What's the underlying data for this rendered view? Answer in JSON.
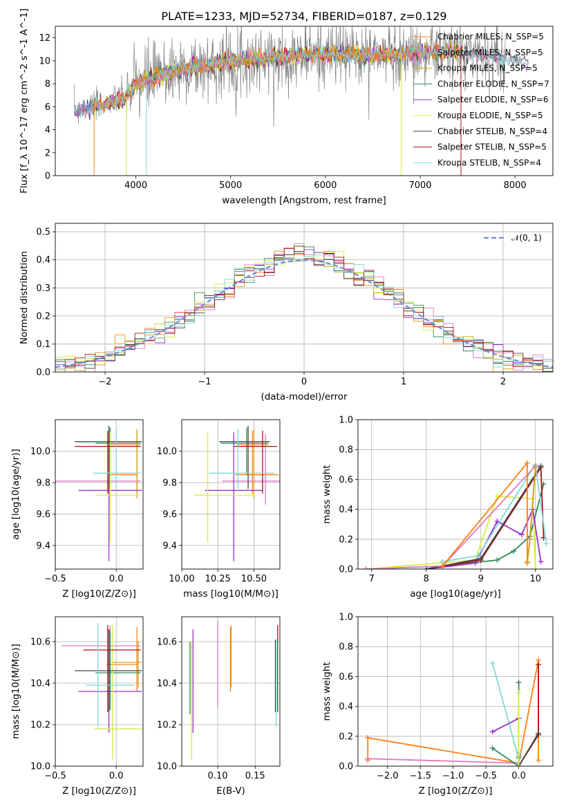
{
  "figure": {
    "title": "PLATE=1233, MJD=52734, FIBERID=0187, z=0.129",
    "colors": {
      "chabrier_miles": "#ff7f0e",
      "salpeter_miles": "#e377c2",
      "kroupa_miles": "#d4a017",
      "chabrier_elodie": "#2e8b57",
      "salpeter_elodie": "#9932cc",
      "kroupa_elodie": "#d4ee3b",
      "chabrier_stelib": "#444444",
      "salpeter_stelib": "#aa1111",
      "kroupa_stelib": "#7fd8d8",
      "data": "#808080",
      "normal": "#6b8fd6"
    }
  },
  "chart_data": [
    {
      "id": "spectrum",
      "type": "line",
      "xlabel": "wavelength [Angstrom, rest frame]",
      "ylabel": "Flux [f_λ 10^-17 erg cm^-2 s^-1 A^-1]",
      "xlim": [
        3150,
        8400
      ],
      "ylim": [
        0,
        13
      ],
      "xticks": [
        "4000",
        "5000",
        "6000",
        "7000",
        "8000"
      ],
      "yticks": [
        "0",
        "2",
        "4",
        "6",
        "8",
        "10",
        "12"
      ],
      "continuum": {
        "x": [
          3350,
          3500,
          3700,
          3900,
          4000,
          4200,
          4400,
          4600,
          4800,
          5000,
          5400,
          5800,
          6200,
          6600,
          7000,
          7400,
          7800,
          8150
        ],
        "y": [
          5.6,
          5.9,
          6.3,
          6.9,
          7.9,
          8.6,
          9.1,
          9.4,
          9.6,
          10.0,
          10.2,
          10.5,
          10.6,
          10.5,
          10.7,
          10.8,
          10.3,
          9.7
        ]
      },
      "legend_position": "upper-right",
      "series": [
        {
          "name": "Chabrier MILES, N_SSP=5",
          "key": "chabrier_miles"
        },
        {
          "name": "Salpeter MILES, N_SSP=5",
          "key": "salpeter_miles"
        },
        {
          "name": "Kroupa MILES, N_SSP=5",
          "key": "kroupa_miles"
        },
        {
          "name": "Chabrier ELODIE, N_SSP=7",
          "key": "chabrier_elodie"
        },
        {
          "name": "Salpeter ELODIE, N_SSP=6",
          "key": "salpeter_elodie"
        },
        {
          "name": "Kroupa ELODIE, N_SSP=5",
          "key": "kroupa_elodie"
        },
        {
          "name": "Chabrier STELIB, N_SSP=4",
          "key": "chabrier_stelib"
        },
        {
          "name": "Salpeter STELIB, N_SSP=5",
          "key": "salpeter_stelib"
        },
        {
          "name": "Kroupa STELIB, N_SSP=4",
          "key": "kroupa_stelib"
        }
      ]
    },
    {
      "id": "residuals",
      "type": "line",
      "xlabel": "(data-model)/error",
      "ylabel": "Normed distribution",
      "xlim": [
        -2.5,
        2.5
      ],
      "ylim": [
        0,
        0.53
      ],
      "xticks": [
        "−2",
        "−1",
        "0",
        "1",
        "2"
      ],
      "yticks": [
        "0.0",
        "0.1",
        "0.2",
        "0.3",
        "0.4",
        "0.5"
      ],
      "normal_legend": "𝒩(0, 1)",
      "bin_width": 0.1,
      "bins_start": -2.5
    },
    {
      "id": "age_Z",
      "type": "scatter",
      "xlabel": "Z [log10(Z/Z⊙)]",
      "ylabel": "age [log10(age/yr)]",
      "xlim": [
        -0.5,
        0.22
      ],
      "ylim": [
        9.25,
        10.2
      ],
      "xticks": [
        "−0.5",
        "0.0"
      ],
      "yticks": [
        "9.4",
        "9.6",
        "9.8",
        "10.0"
      ],
      "points": [
        {
          "key": "chabrier_miles",
          "x": 0.17,
          "xerr": [
            0.23,
            0.0
          ],
          "y": 9.85,
          "yerr": [
            0.12,
            0.28
          ]
        },
        {
          "key": "salpeter_miles",
          "x": -0.05,
          "xerr": [
            0.45,
            0.25
          ],
          "y": 9.81,
          "yerr": [
            0.15,
            0.3
          ]
        },
        {
          "key": "kroupa_miles",
          "x": 0.17,
          "xerr": [
            0.22,
            0.03
          ],
          "y": 10.04,
          "yerr": [
            0.34,
            0.1
          ]
        },
        {
          "key": "chabrier_elodie",
          "x": -0.05,
          "xerr": [
            0.12,
            0.25
          ],
          "y": 10.05,
          "yerr": [
            0.2,
            0.1
          ]
        },
        {
          "key": "salpeter_elodie",
          "x": -0.06,
          "xerr": [
            0.25,
            0.27
          ],
          "y": 9.75,
          "yerr": [
            0.45,
            0.37
          ]
        },
        {
          "key": "kroupa_elodie",
          "x": -0.05,
          "xerr": [
            0.12,
            0.25
          ],
          "y": 9.72,
          "yerr": [
            0.3,
            0.4
          ]
        },
        {
          "key": "chabrier_stelib",
          "x": -0.06,
          "xerr": [
            0.28,
            0.27
          ],
          "y": 10.06,
          "yerr": [
            0.3,
            0.1
          ]
        },
        {
          "key": "salpeter_stelib",
          "x": -0.07,
          "xerr": [
            0.27,
            0.27
          ],
          "y": 10.03,
          "yerr": [
            0.3,
            0.1
          ]
        },
        {
          "key": "kroupa_stelib",
          "x": 0.0,
          "xerr": [
            0.19,
            0.2
          ],
          "y": 9.86,
          "yerr": [
            0.1,
            0.28
          ]
        }
      ]
    },
    {
      "id": "age_mass",
      "type": "scatter",
      "xlabel": "mass [log10(M/M⊙)]",
      "ylabel": "",
      "xlim": [
        10.0,
        10.68
      ],
      "ylim": [
        9.25,
        10.2
      ],
      "xticks": [
        "10.00",
        "10.25",
        "10.50"
      ],
      "yticks": [
        "9.4",
        "9.6",
        "9.8",
        "10.0"
      ],
      "points": [
        {
          "key": "chabrier_miles",
          "x": 10.49,
          "xerr": [
            0.12,
            0.18
          ],
          "y": 9.85,
          "yerr": [
            0.12,
            0.28
          ]
        },
        {
          "key": "salpeter_miles",
          "x": 10.58,
          "xerr": [
            0.3,
            0.1
          ],
          "y": 9.81,
          "yerr": [
            0.15,
            0.3
          ]
        },
        {
          "key": "kroupa_miles",
          "x": 10.5,
          "xerr": [
            0.12,
            0.1
          ],
          "y": 10.04,
          "yerr": [
            0.34,
            0.1
          ]
        },
        {
          "key": "chabrier_elodie",
          "x": 10.45,
          "xerr": [
            0.18,
            0.15
          ],
          "y": 10.05,
          "yerr": [
            0.2,
            0.1
          ]
        },
        {
          "key": "salpeter_elodie",
          "x": 10.36,
          "xerr": [
            0.2,
            0.2
          ],
          "y": 9.75,
          "yerr": [
            0.45,
            0.37
          ]
        },
        {
          "key": "kroupa_elodie",
          "x": 10.18,
          "xerr": [
            0.1,
            0.32
          ],
          "y": 9.72,
          "yerr": [
            0.3,
            0.4
          ]
        },
        {
          "key": "chabrier_stelib",
          "x": 10.46,
          "xerr": [
            0.2,
            0.15
          ],
          "y": 10.06,
          "yerr": [
            0.3,
            0.1
          ]
        },
        {
          "key": "salpeter_stelib",
          "x": 10.56,
          "xerr": [
            0.2,
            0.1
          ],
          "y": 10.03,
          "yerr": [
            0.3,
            0.1
          ]
        },
        {
          "key": "kroupa_stelib",
          "x": 10.39,
          "xerr": [
            0.2,
            0.25
          ],
          "y": 9.86,
          "yerr": [
            0.1,
            0.28
          ]
        }
      ]
    },
    {
      "id": "mass_weight_age",
      "type": "line",
      "xlabel": "age [log10(age/yr)]",
      "ylabel": "mass weight",
      "xlim": [
        6.75,
        10.32
      ],
      "ylim": [
        0,
        1.0
      ],
      "xticks": [
        "7",
        "8",
        "9",
        "10"
      ],
      "yticks": [
        "0.0",
        "0.2",
        "0.4",
        "0.6",
        "0.8",
        "1.0"
      ],
      "series": [
        {
          "key": "chabrier_elodie",
          "x": [
            6.9,
            8.3,
            9.3,
            9.6,
            9.9,
            10.15
          ],
          "y": [
            0.0,
            0.02,
            0.06,
            0.12,
            0.22,
            0.57
          ]
        },
        {
          "key": "kroupa_elodie",
          "x": [
            6.9,
            8.9,
            9.3,
            9.95,
            10.0
          ],
          "y": [
            0.0,
            0.06,
            0.49,
            0.47,
            0.0
          ]
        },
        {
          "key": "salpeter_elodie",
          "x": [
            8.0,
            8.9,
            9.3,
            9.75,
            9.95,
            10.1
          ],
          "y": [
            0.0,
            0.04,
            0.32,
            0.23,
            0.4,
            0.05
          ]
        },
        {
          "key": "salpeter_stelib",
          "x": [
            8.0,
            9.0,
            10.1,
            10.15
          ],
          "y": [
            0.0,
            0.06,
            0.68,
            0.21
          ]
        },
        {
          "key": "chabrier_stelib",
          "x": [
            8.0,
            9.0,
            10.1
          ],
          "y": [
            0.0,
            0.07,
            0.69
          ]
        },
        {
          "key": "kroupa_stelib",
          "x": [
            8.3,
            8.95,
            10.0,
            10.2
          ],
          "y": [
            0.05,
            0.09,
            0.7,
            0.17
          ]
        },
        {
          "key": "salpeter_miles",
          "x": [
            6.9,
            8.3,
            10.0
          ],
          "y": [
            0.0,
            0.02,
            0.69
          ]
        },
        {
          "key": "chabrier_miles",
          "x": [
            8.3,
            9.85,
            9.85,
            9.9,
            10.0
          ],
          "y": [
            0.02,
            0.71,
            0.04,
            0.2,
            0.68
          ]
        },
        {
          "key": "kroupa_miles",
          "x": [
            9.85,
            9.9,
            10.0
          ],
          "y": [
            0.05,
            0.2,
            0.68
          ]
        }
      ]
    },
    {
      "id": "mass_Z",
      "type": "scatter",
      "xlabel": "Z [log10(Z/Z⊙)]",
      "ylabel": "mass [log10(M/M⊙)]",
      "xlim": [
        -0.5,
        0.22
      ],
      "ylim": [
        10.0,
        10.72
      ],
      "xticks": [
        "−0.5",
        "0.0"
      ],
      "yticks": [
        "10.0",
        "10.2",
        "10.4",
        "10.6"
      ],
      "points": [
        {
          "key": "chabrier_miles",
          "x": 0.17,
          "xerr": [
            0.25,
            0.0
          ],
          "y": 10.49,
          "yerr": [
            0.13,
            0.18
          ]
        },
        {
          "key": "salpeter_miles",
          "x": -0.05,
          "xerr": [
            0.4,
            0.25
          ],
          "y": 10.58,
          "yerr": [
            0.3,
            0.1
          ]
        },
        {
          "key": "kroupa_miles",
          "x": 0.18,
          "xerr": [
            0.22,
            0.03
          ],
          "y": 10.5,
          "yerr": [
            0.12,
            0.1
          ]
        },
        {
          "key": "chabrier_elodie",
          "x": -0.05,
          "xerr": [
            0.12,
            0.25
          ],
          "y": 10.45,
          "yerr": [
            0.18,
            0.2
          ]
        },
        {
          "key": "salpeter_elodie",
          "x": -0.06,
          "xerr": [
            0.25,
            0.27
          ],
          "y": 10.36,
          "yerr": [
            0.2,
            0.3
          ]
        },
        {
          "key": "kroupa_elodie",
          "x": -0.03,
          "xerr": [
            0.15,
            0.25
          ],
          "y": 10.18,
          "yerr": [
            0.15,
            0.5
          ]
        },
        {
          "key": "chabrier_stelib",
          "x": -0.06,
          "xerr": [
            0.28,
            0.27
          ],
          "y": 10.46,
          "yerr": [
            0.2,
            0.2
          ]
        },
        {
          "key": "salpeter_stelib",
          "x": -0.07,
          "xerr": [
            0.2,
            0.27
          ],
          "y": 10.56,
          "yerr": [
            0.3,
            0.12
          ]
        },
        {
          "key": "kroupa_stelib",
          "x": -0.15,
          "xerr": [
            0.1,
            0.3
          ],
          "y": 10.39,
          "yerr": [
            0.2,
            0.3
          ]
        }
      ]
    },
    {
      "id": "mass_EBV",
      "type": "scatter",
      "xlabel": "E(B-V)",
      "ylabel": "",
      "xlim": [
        0.052,
        0.183
      ],
      "ylim": [
        10.0,
        10.72
      ],
      "xticks": [
        "0.10",
        "0.15"
      ],
      "yticks": [
        "10.0",
        "10.2",
        "10.4",
        "10.6"
      ],
      "points": [
        {
          "key": "chabrier_miles",
          "y": 10.49,
          "yerr": [
            0.13,
            0.18
          ],
          "x": 0.117
        },
        {
          "key": "salpeter_miles",
          "y": 10.58,
          "yerr": [
            0.3,
            0.12
          ],
          "x": 0.1
        },
        {
          "key": "kroupa_miles",
          "y": 10.5,
          "yerr": [
            0.12,
            0.18
          ],
          "x": 0.118
        },
        {
          "key": "chabrier_elodie",
          "y": 10.45,
          "yerr": [
            0.2,
            0.15
          ],
          "x": 0.063
        },
        {
          "key": "salpeter_elodie",
          "y": 10.36,
          "yerr": [
            0.2,
            0.3
          ],
          "x": 0.067
        },
        {
          "key": "kroupa_elodie",
          "y": 10.18,
          "yerr": [
            0.15,
            0.42
          ],
          "x": 0.065
        },
        {
          "key": "chabrier_stelib",
          "y": 10.46,
          "yerr": [
            0.2,
            0.15
          ],
          "x": 0.177
        },
        {
          "key": "salpeter_stelib",
          "y": 10.56,
          "yerr": [
            0.3,
            0.12
          ],
          "x": 0.18
        },
        {
          "key": "kroupa_stelib",
          "y": 10.39,
          "yerr": [
            0.2,
            0.22
          ],
          "x": 0.178
        }
      ]
    },
    {
      "id": "mass_weight_Z",
      "type": "line",
      "xlabel": "Z [log10(Z/Z⊙)]",
      "ylabel": "mass weight",
      "xlim": [
        -2.45,
        0.52
      ],
      "ylim": [
        0,
        1.0
      ],
      "xticks": [
        "−2.0",
        "−1.5",
        "−1.0",
        "−0.5",
        "0.0"
      ],
      "yticks": [
        "0.0",
        "0.2",
        "0.4",
        "0.6",
        "0.8",
        "1.0"
      ],
      "series": [
        {
          "key": "chabrier_miles",
          "x": [
            -2.3,
            -2.3,
            0.0,
            0.3,
            0.3
          ],
          "y": [
            0.04,
            0.19,
            0.02,
            0.71,
            0.04
          ]
        },
        {
          "key": "salpeter_miles",
          "x": [
            -2.3,
            0.0,
            0.0
          ],
          "y": [
            0.05,
            0.02,
            0.0
          ]
        },
        {
          "key": "salpeter_stelib",
          "x": [
            0.0,
            0.3,
            0.3
          ],
          "y": [
            0.0,
            0.21,
            0.68
          ]
        },
        {
          "key": "chabrier_stelib",
          "x": [
            0.0,
            0.3
          ],
          "y": [
            0.0,
            0.22
          ]
        },
        {
          "key": "kroupa_stelib",
          "x": [
            -0.4,
            0.0,
            0.0
          ],
          "y": [
            0.69,
            0.05,
            0.09
          ]
        },
        {
          "key": "chabrier_elodie",
          "x": [
            -0.4,
            0.0,
            0.0,
            0.0
          ],
          "y": [
            0.12,
            0.0,
            0.56,
            0.06
          ]
        },
        {
          "key": "salpeter_elodie",
          "x": [
            -0.4,
            0.0
          ],
          "y": [
            0.23,
            0.32
          ]
        },
        {
          "key": "kroupa_elodie",
          "x": [
            0.0,
            0.0
          ],
          "y": [
            0.49,
            0.0
          ]
        }
      ]
    }
  ]
}
